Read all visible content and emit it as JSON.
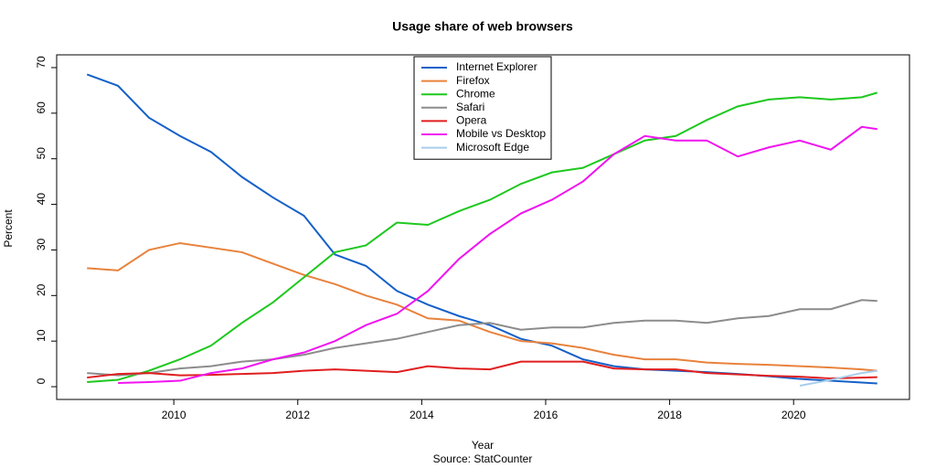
{
  "chart_data": {
    "type": "line",
    "title": "Usage share of web browsers",
    "x_label": "Year",
    "y_label": "Percent",
    "caption": "Source: StatCounter",
    "x": [
      2008.6,
      2009.1,
      2009.6,
      2010.1,
      2010.6,
      2011.1,
      2011.6,
      2012.1,
      2012.6,
      2013.1,
      2013.6,
      2014.1,
      2014.6,
      2015.1,
      2015.6,
      2016.1,
      2016.6,
      2017.1,
      2017.6,
      2018.1,
      2018.6,
      2019.1,
      2019.6,
      2020.1,
      2020.6,
      2021.1,
      2021.35
    ],
    "series": [
      {
        "name": "Internet Explorer",
        "color": "#1560c8",
        "values": [
          68.5,
          66,
          59,
          55,
          51.5,
          46,
          41.5,
          37.5,
          29,
          26.5,
          21,
          18,
          15.5,
          13.5,
          10.5,
          9,
          6,
          4.5,
          3.8,
          3.5,
          3.2,
          2.8,
          2.3,
          1.7,
          1.3,
          0.9,
          0.7
        ]
      },
      {
        "name": "Firefox",
        "color": "#e8823c",
        "values": [
          26,
          25.5,
          30,
          31.5,
          30.5,
          29.5,
          27,
          24.5,
          22.5,
          20,
          18,
          15,
          14.5,
          12,
          10,
          9.5,
          8.5,
          7,
          6,
          6,
          5.3,
          5,
          4.8,
          4.5,
          4.2,
          3.8,
          3.5
        ]
      },
      {
        "name": "Chrome",
        "color": "#1ec81e",
        "values": [
          1,
          1.5,
          3.5,
          6,
          9,
          14,
          18.5,
          24,
          29.5,
          31,
          36,
          35.5,
          38.5,
          41,
          44.5,
          47,
          48,
          51,
          54,
          55,
          58.5,
          61.5,
          63,
          63.5,
          63,
          63.5,
          64.5
        ]
      },
      {
        "name": "Safari",
        "color": "#8c8c8c",
        "values": [
          3,
          2.5,
          3,
          4,
          4.5,
          5.5,
          6,
          7,
          8.5,
          9.5,
          10.5,
          12,
          13.5,
          14,
          12.5,
          13,
          13,
          14,
          14.5,
          14.5,
          14,
          15,
          15.5,
          17,
          17,
          19,
          18.8
        ]
      },
      {
        "name": "Opera",
        "color": "#e01e1e",
        "values": [
          2,
          2.8,
          3,
          2.5,
          2.6,
          2.8,
          3,
          3.5,
          3.8,
          3.5,
          3.2,
          4.5,
          4,
          3.8,
          5.5,
          5.5,
          5.5,
          4,
          3.8,
          3.8,
          3,
          2.7,
          2.4,
          2.2,
          1.8,
          2,
          2.1
        ]
      },
      {
        "name": "Mobile vs Desktop",
        "color": "#f014f0",
        "values": [
          null,
          0.8,
          1,
          1.3,
          3,
          4,
          6,
          7.5,
          10,
          13.5,
          16,
          21,
          28,
          33.5,
          38,
          41,
          45,
          51,
          55,
          54,
          54,
          50.5,
          52.5,
          54,
          52,
          57,
          56.5
        ]
      },
      {
        "name": "Microsoft Edge",
        "color": "#a8cdec",
        "values": [
          null,
          null,
          null,
          null,
          null,
          null,
          null,
          null,
          null,
          null,
          null,
          null,
          null,
          null,
          null,
          null,
          null,
          null,
          null,
          null,
          null,
          null,
          null,
          0.2,
          1.5,
          3,
          3.5
        ]
      }
    ],
    "xlim": [
      2008.11,
      2021.87
    ],
    "ylim": [
      -2.8,
      72.8
    ],
    "xticks": [
      2010,
      2012,
      2014,
      2016,
      2018,
      2020
    ],
    "yticks": [
      0,
      10,
      20,
      30,
      40,
      50,
      60,
      70
    ]
  }
}
